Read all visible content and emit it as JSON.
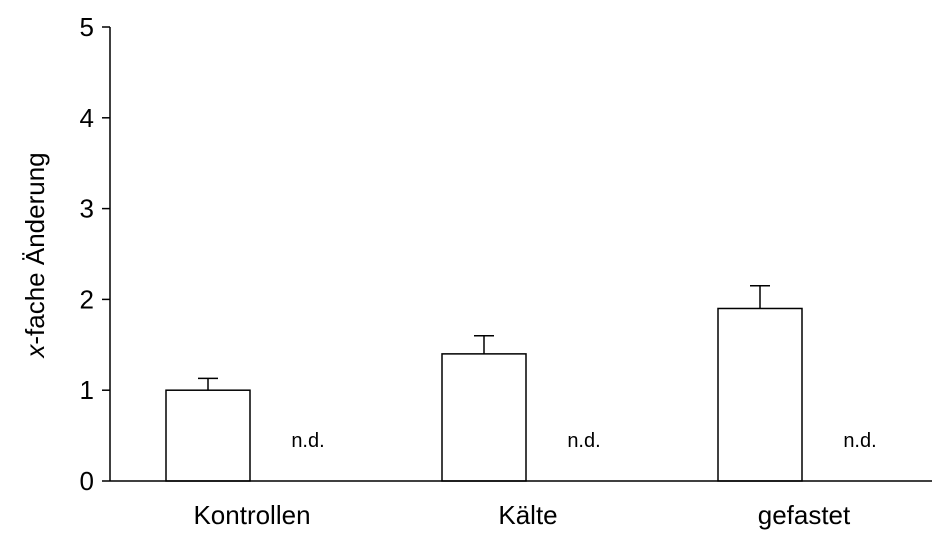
{
  "chart_data": {
    "type": "bar",
    "title": "",
    "xlabel": "",
    "ylabel": "x-fache Änderung",
    "ylabel_italic_prefix": "x",
    "ylabel_rest": "-fache Änderung",
    "ylim": [
      0,
      5
    ],
    "yticks": [
      0,
      1,
      2,
      3,
      4,
      5
    ],
    "categories": [
      "Kontrollen",
      "Kälte",
      "gefastet"
    ],
    "series": [
      {
        "values": [
          1.0,
          1.4,
          1.9
        ],
        "errors": [
          0.13,
          0.2,
          0.25
        ],
        "fill": "#ffffff",
        "stroke": "#000000"
      },
      {
        "values": [
          null,
          null,
          null
        ],
        "annotations": [
          "n.d.",
          "n.d.",
          "n.d."
        ]
      }
    ],
    "grid": false,
    "legend": "none"
  }
}
